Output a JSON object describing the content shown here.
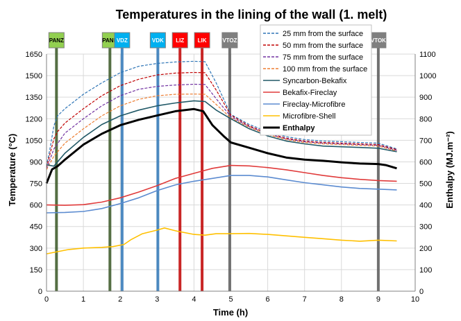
{
  "chart_data": {
    "type": "line",
    "title": "Temperatures in the lining of the wall (1. melt)",
    "xlabel": "Time (h)",
    "ylabel": "Temperature (°C)",
    "y2label": "Enthalpy  (MJ.m⁻²)",
    "xlim": [
      0,
      10
    ],
    "ylim": [
      0,
      1650
    ],
    "y2lim": [
      0,
      1100
    ],
    "x_ticks": [
      "0",
      "1",
      "2",
      "3",
      "4",
      "5",
      "6",
      "7",
      "8",
      "9",
      "10"
    ],
    "y_ticks": [
      "0",
      "150",
      "300",
      "450",
      "600",
      "750",
      "900",
      "1050",
      "1200",
      "1350",
      "1500",
      "1650"
    ],
    "y2_ticks": [
      "0",
      "100",
      "200",
      "300",
      "400",
      "500",
      "600",
      "700",
      "800",
      "900",
      "1000",
      "1100"
    ],
    "grid": true,
    "legend_position": "top-right",
    "markers": [
      {
        "label": "PANZ",
        "x": 0.27,
        "color": "#375623",
        "box": "#92d050",
        "text_dark": true
      },
      {
        "label": "PANK",
        "x": 1.72,
        "color": "#375623",
        "box": "#92d050",
        "text_dark": true
      },
      {
        "label": "VDZ",
        "x": 2.05,
        "color": "#2e75b6",
        "box": "#00b0f0",
        "text_dark": false
      },
      {
        "label": "VDK",
        "x": 3.02,
        "color": "#2e75b6",
        "box": "#00b0f0",
        "text_dark": false
      },
      {
        "label": "LIZ",
        "x": 3.62,
        "color": "#c00000",
        "box": "#ff0000",
        "text_dark": false
      },
      {
        "label": "LIK",
        "x": 4.22,
        "color": "#c00000",
        "box": "#ff0000",
        "text_dark": false
      },
      {
        "label": "VTOZ",
        "x": 4.97,
        "color": "#595959",
        "box": "#7f7f7f",
        "text_dark": false
      },
      {
        "label": "VTOK",
        "x": 9.0,
        "color": "#595959",
        "box": "#7f7f7f",
        "text_dark": false
      }
    ],
    "series": [
      {
        "name": "25 mm from the surface",
        "color": "#2e75b6",
        "dash": true,
        "axis": "left",
        "x": [
          0,
          0.1,
          0.2,
          0.3,
          0.5,
          1,
          1.5,
          2,
          2.5,
          3,
          3.5,
          4,
          4.3,
          4.6,
          5,
          5.5,
          6,
          6.5,
          7,
          7.5,
          8,
          8.5,
          9,
          9.5
        ],
        "y": [
          870,
          1000,
          1150,
          1220,
          1270,
          1370,
          1450,
          1520,
          1565,
          1585,
          1595,
          1600,
          1597,
          1450,
          1230,
          1160,
          1110,
          1075,
          1055,
          1045,
          1040,
          1035,
          1030,
          990
        ]
      },
      {
        "name": "50 mm from the surface",
        "color": "#c00000",
        "dash": true,
        "axis": "left",
        "x": [
          0,
          0.1,
          0.2,
          0.3,
          0.5,
          1,
          1.5,
          2,
          2.5,
          3,
          3.5,
          4,
          4.3,
          4.6,
          5,
          5.5,
          6,
          6.5,
          7,
          7.5,
          8,
          8.5,
          9,
          9.5
        ],
        "y": [
          860,
          960,
          1060,
          1110,
          1170,
          1270,
          1360,
          1430,
          1475,
          1505,
          1518,
          1522,
          1520,
          1400,
          1225,
          1150,
          1100,
          1065,
          1045,
          1035,
          1030,
          1025,
          1020,
          985
        ]
      },
      {
        "name": "75 mm from the surface",
        "color": "#7030a0",
        "dash": true,
        "axis": "left",
        "x": [
          0,
          0.2,
          0.5,
          1,
          1.5,
          2,
          2.5,
          3,
          3.5,
          4,
          4.3,
          4.6,
          5,
          5.5,
          6,
          6.5,
          7,
          7.5,
          8,
          8.5,
          9,
          9.5
        ],
        "y": [
          850,
          990,
          1100,
          1200,
          1290,
          1360,
          1405,
          1425,
          1435,
          1440,
          1438,
          1340,
          1215,
          1145,
          1095,
          1060,
          1040,
          1030,
          1025,
          1020,
          1015,
          980
        ]
      },
      {
        "name": "100 mm from the surface",
        "color": "#ed7d31",
        "dash": true,
        "axis": "left",
        "x": [
          0,
          0.2,
          0.5,
          1,
          1.5,
          2,
          2.5,
          3,
          3.5,
          4,
          4.3,
          4.6,
          5,
          5.5,
          6,
          6.5,
          7,
          7.5,
          8,
          8.5,
          9,
          9.5
        ],
        "y": [
          845,
          940,
          1030,
          1130,
          1220,
          1290,
          1335,
          1360,
          1370,
          1372,
          1370,
          1300,
          1205,
          1140,
          1090,
          1055,
          1035,
          1025,
          1020,
          1015,
          1010,
          975
        ]
      },
      {
        "name": "Syncarbon-Bekafix",
        "color": "#215967",
        "dash": false,
        "axis": "left",
        "x": [
          0,
          0.2,
          0.5,
          1,
          1.5,
          2,
          2.5,
          3,
          3.5,
          4,
          4.3,
          4.6,
          5,
          5.5,
          6,
          6.5,
          7,
          7.5,
          8,
          8.5,
          9,
          9.5
        ],
        "y": [
          880,
          870,
          960,
          1070,
          1160,
          1220,
          1260,
          1290,
          1310,
          1325,
          1320,
          1260,
          1200,
          1130,
          1080,
          1045,
          1025,
          1010,
          1005,
          1000,
          995,
          970
        ]
      },
      {
        "name": "Bekafix-Fireclay",
        "color": "#e03a3a",
        "dash": false,
        "axis": "left",
        "x": [
          0,
          0.5,
          1,
          1.5,
          2,
          2.5,
          3,
          3.5,
          4,
          4.5,
          5,
          5.5,
          6,
          6.5,
          7,
          7.5,
          8,
          8.5,
          9,
          9.5
        ],
        "y": [
          600,
          598,
          602,
          620,
          650,
          690,
          735,
          785,
          820,
          855,
          875,
          872,
          860,
          845,
          825,
          805,
          790,
          778,
          770,
          765
        ]
      },
      {
        "name": "Fireclay-Microfibre",
        "color": "#5b8bd0",
        "dash": false,
        "axis": "left",
        "x": [
          0,
          0.5,
          1,
          1.5,
          2,
          2.5,
          3,
          3.5,
          4,
          4.5,
          5,
          5.5,
          6,
          6.5,
          7,
          7.5,
          8,
          8.5,
          9,
          9.5
        ],
        "y": [
          545,
          548,
          555,
          575,
          610,
          650,
          700,
          740,
          765,
          785,
          805,
          805,
          795,
          775,
          755,
          740,
          725,
          715,
          710,
          705
        ]
      },
      {
        "name": "Microfibre-Shell",
        "color": "#ffc000",
        "dash": false,
        "axis": "left",
        "x": [
          0,
          0.3,
          0.6,
          1,
          1.5,
          1.8,
          2.1,
          2.3,
          2.6,
          3,
          3.2,
          3.5,
          4,
          4.3,
          4.6,
          5,
          5.5,
          6,
          6.5,
          7,
          7.5,
          8,
          8.5,
          9,
          9.5
        ],
        "y": [
          260,
          275,
          290,
          300,
          305,
          310,
          325,
          360,
          400,
          425,
          440,
          420,
          395,
          390,
          400,
          400,
          402,
          395,
          385,
          375,
          365,
          355,
          348,
          355,
          350
        ]
      },
      {
        "name": "Enthalpy",
        "color": "#000000",
        "dash": false,
        "axis": "right",
        "thick": true,
        "x": [
          0,
          0.15,
          0.3,
          0.5,
          1,
          1.5,
          2,
          2.5,
          3,
          3.5,
          4,
          4.25,
          4.5,
          4.8,
          5,
          5.5,
          6,
          6.5,
          7,
          7.5,
          8,
          8.5,
          9,
          9.2,
          9.5
        ],
        "y": [
          500,
          565,
          580,
          610,
          680,
          730,
          770,
          795,
          815,
          835,
          845,
          835,
          770,
          720,
          690,
          665,
          640,
          620,
          610,
          605,
          598,
          592,
          590,
          585,
          570
        ]
      }
    ]
  }
}
